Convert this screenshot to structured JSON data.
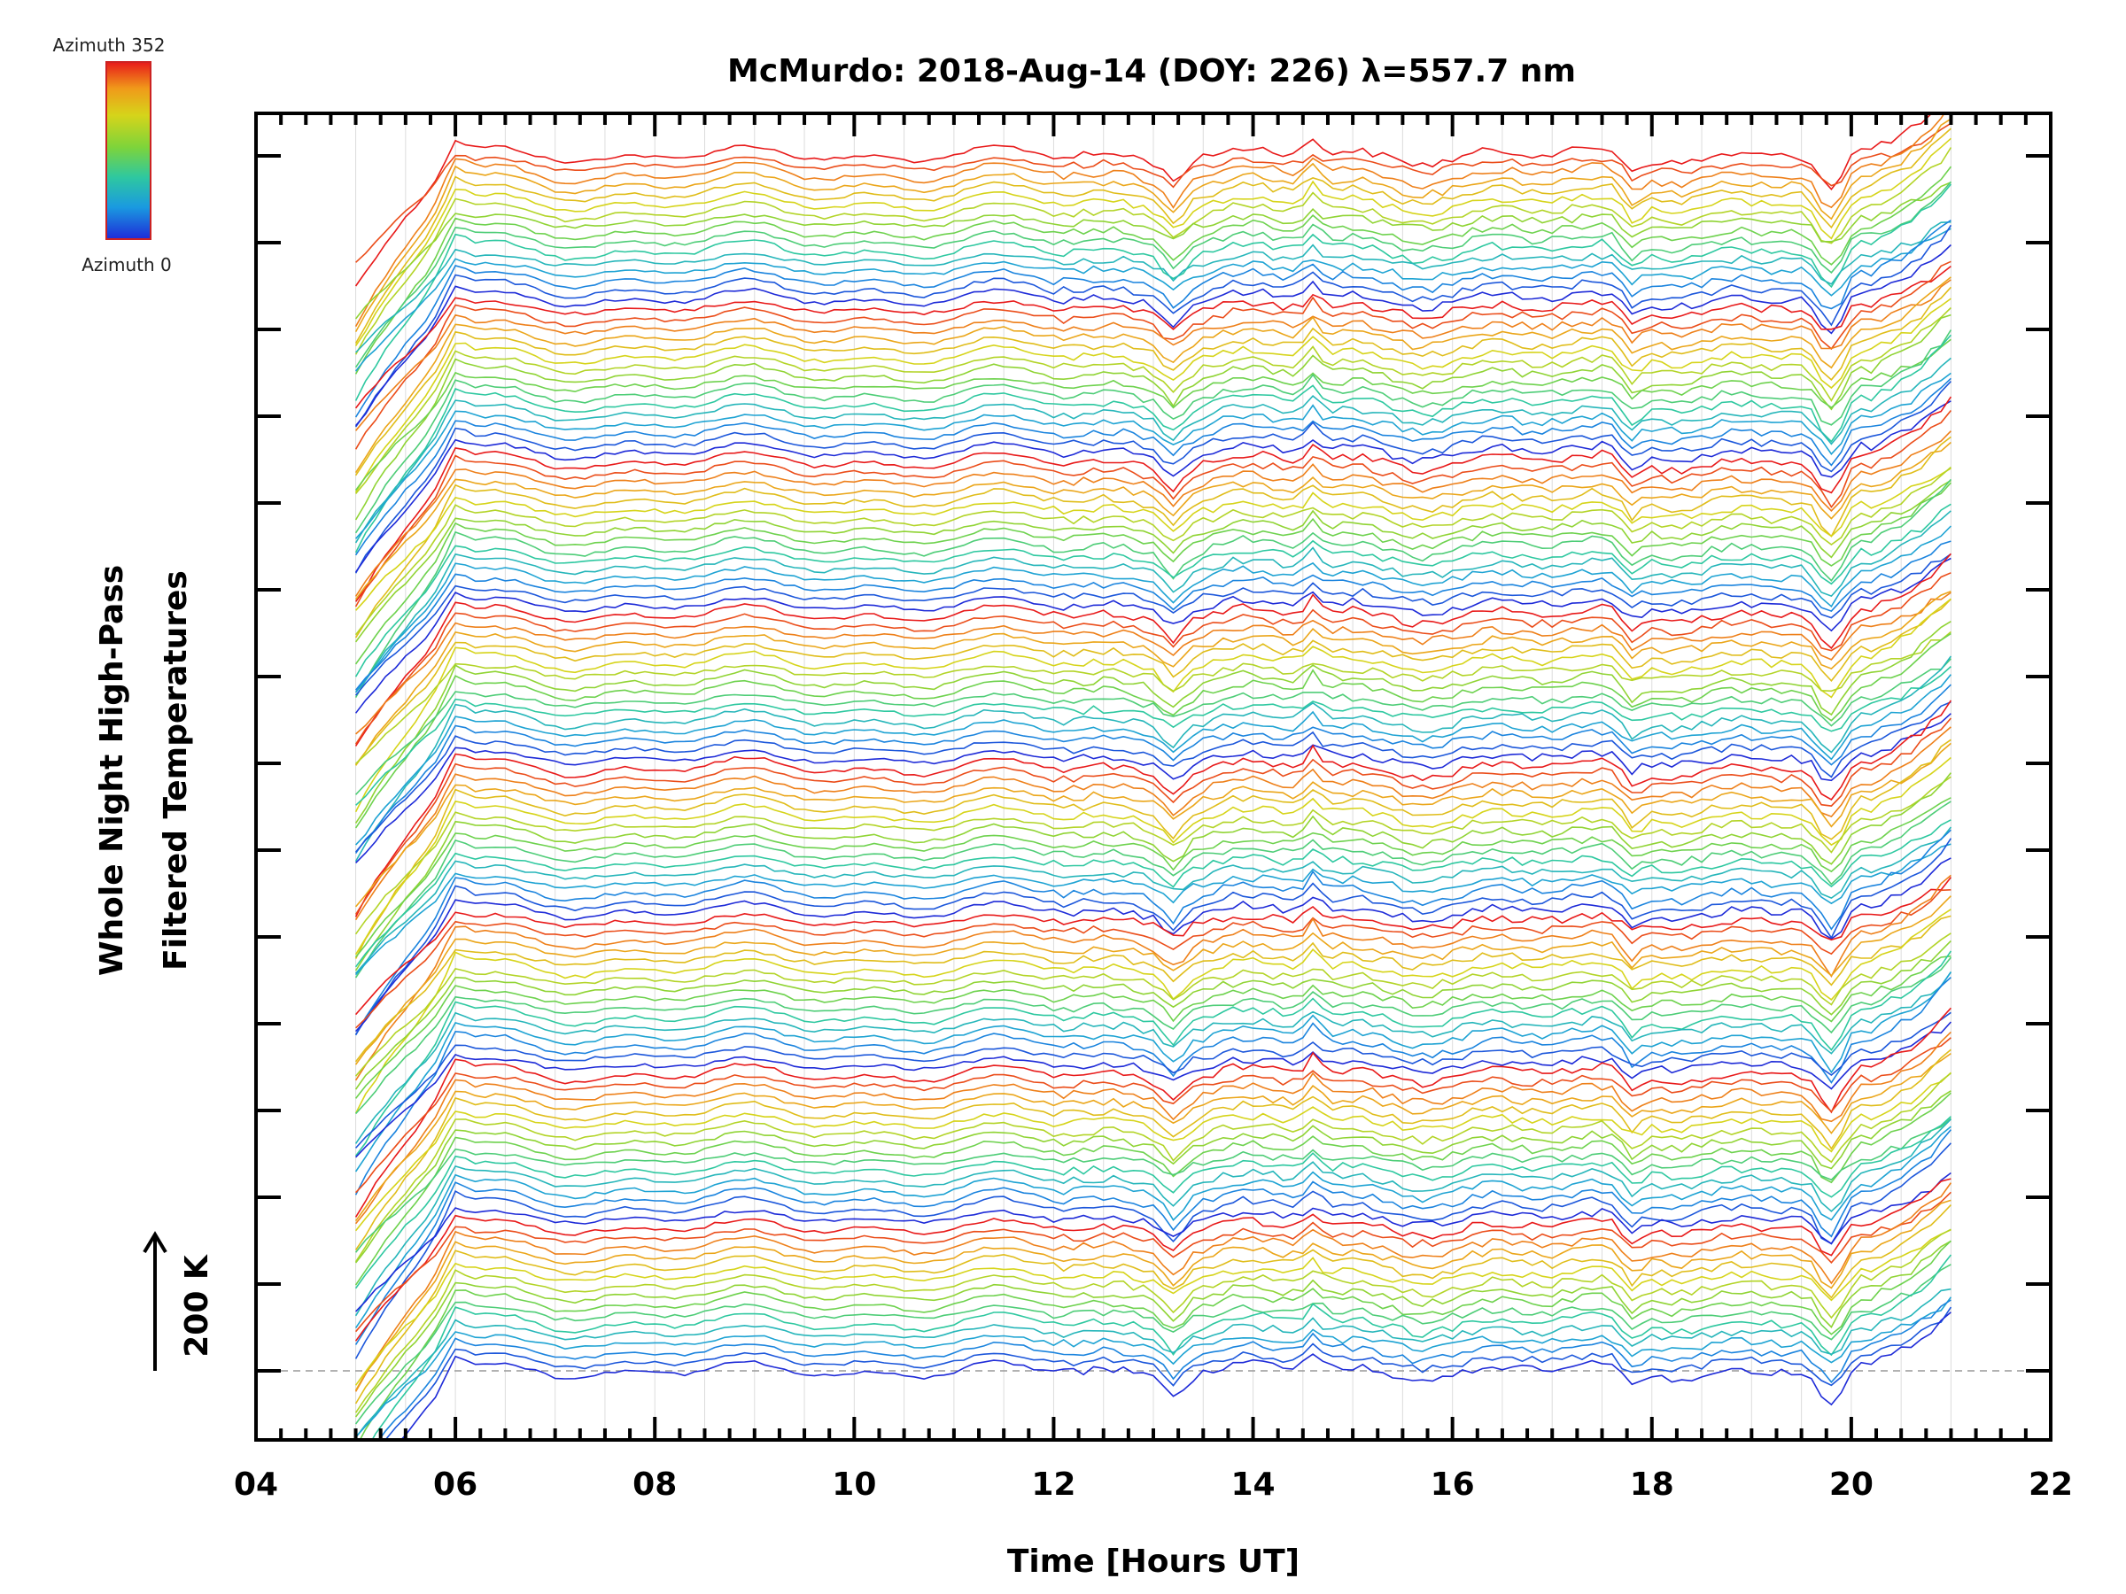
{
  "chart_data": {
    "type": "line",
    "title": "McMurdo: 2018-Aug-14 (DOY: 226) λ=557.7 nm",
    "xlabel": "Time [Hours UT]",
    "ylabel_line1": "Whole Night High-Pass",
    "ylabel_line2": "Filtered Temperatures",
    "xlim": [
      4,
      22
    ],
    "x_ticks": [
      "04",
      "06",
      "08",
      "10",
      "12",
      "14",
      "16",
      "18",
      "20",
      "22"
    ],
    "x_data_range": [
      5.0,
      21.0
    ],
    "y_scale_label": "200 K",
    "baseline_dashed": true,
    "colorbar": {
      "label_top": "Azimuth 352",
      "label_bottom": "Azimuth 0",
      "colormap": [
        "#1e2bd8",
        "#1a9ae0",
        "#2ec8a0",
        "#7ed43a",
        "#d6d41a",
        "#f09a1a",
        "#e81a1a"
      ]
    },
    "series_description": "Stacked high-pass filtered temperature traces; azimuth sectors repeat in blocks coloured blue→green→yellow→red",
    "series_count": 128,
    "groups": 8,
    "notable_events": [
      {
        "time": 6.0,
        "feature": "peak after steep rise"
      },
      {
        "time": 13.2,
        "feature": "dip"
      },
      {
        "time": 14.6,
        "feature": "spike"
      },
      {
        "time": 17.8,
        "feature": "dip"
      },
      {
        "time": 19.8,
        "feature": "deep dip"
      },
      {
        "time": 20.2,
        "feature": "sharp rise"
      }
    ]
  }
}
